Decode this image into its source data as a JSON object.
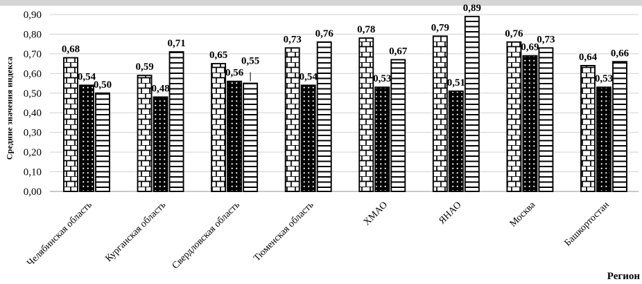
{
  "window": {
    "top_strip_color": "#d5d5d5"
  },
  "chart_data": {
    "type": "bar",
    "title": "",
    "categories": [
      "Челябинская область",
      "Курганская область",
      "Свердловская область",
      "Тюменская область",
      "ХМАО",
      "ЯНАО",
      "Москва",
      "Башкортостан"
    ],
    "series": [
      {
        "name": "brick-pattern-bars",
        "pattern": "brick",
        "fill": "#ffffff",
        "stroke": "#000000",
        "values": [
          0.68,
          0.59,
          0.65,
          0.73,
          0.78,
          0.79,
          0.76,
          0.64
        ]
      },
      {
        "name": "black-dotted-bars",
        "pattern": "dots",
        "fill": "#000000",
        "stroke": "#000000",
        "values": [
          0.54,
          0.48,
          0.56,
          0.54,
          0.53,
          0.51,
          0.69,
          0.53
        ]
      },
      {
        "name": "horizontal-stripe-bars",
        "pattern": "hstripes",
        "fill": "#ffffff",
        "stroke": "#000000",
        "values": [
          0.5,
          0.71,
          0.55,
          0.76,
          0.67,
          0.89,
          0.73,
          0.66
        ]
      }
    ],
    "data_labels": true,
    "decimal_separator": ",",
    "xlabel": "Регион",
    "ylabel": "Средние значения индекса",
    "ylim": [
      0,
      0.9
    ],
    "ytick_step": 0.1,
    "ytick_labels": [
      "0,00",
      "0,10",
      "0,20",
      "0,30",
      "0,40",
      "0,50",
      "0,60",
      "0,70",
      "0,80",
      "0,90"
    ],
    "grid": true,
    "gridline_color": "#d0d0d0",
    "axis_line_color": "#b5b5b5",
    "text_color": "#000000",
    "legend_position": "none"
  }
}
